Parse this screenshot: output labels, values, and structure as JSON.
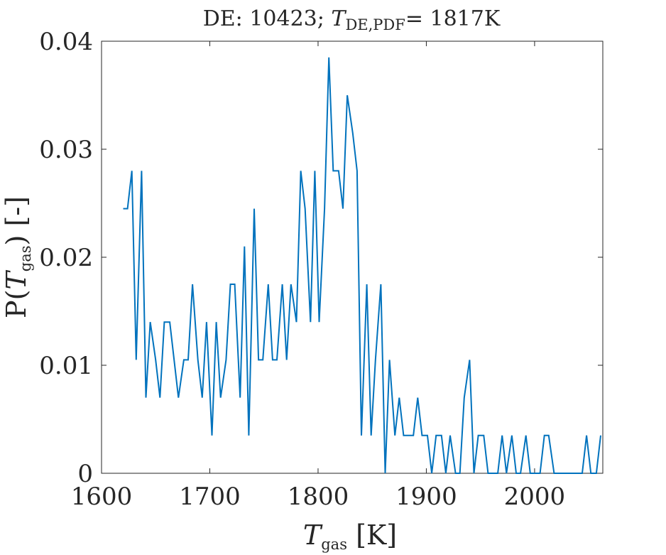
{
  "chart_data": {
    "type": "line",
    "title": {
      "prefix": "DE: 10423; ",
      "var": "T",
      "sub": "DE,PDF",
      "suffix": "= 1817K"
    },
    "xlabel": {
      "var": "T",
      "sub": "gas",
      "unit": " [K]"
    },
    "ylabel": {
      "prefix": "P(",
      "var": "T",
      "sub": "gas",
      "suffix": ") [-]"
    },
    "xlim": [
      1600,
      2063
    ],
    "ylim": [
      0,
      0.04
    ],
    "xticks": [
      1600,
      1700,
      1800,
      1900,
      2000
    ],
    "xtick_labels": [
      "1600",
      "1700",
      "1800",
      "1900",
      "2000"
    ],
    "yticks": [
      0,
      0.01,
      0.02,
      0.03,
      0.04
    ],
    "ytick_labels": [
      "0",
      "0.01",
      "0.02",
      "0.03",
      "0.04"
    ],
    "grid": false,
    "line_color": "#0072BD",
    "series": [
      {
        "x": [
          1620,
          1624,
          1628,
          1632,
          1637,
          1641,
          1645,
          1650,
          1654,
          1658,
          1663,
          1667,
          1671,
          1676,
          1680,
          1684,
          1689,
          1693,
          1697,
          1702,
          1706,
          1710,
          1715,
          1719,
          1723,
          1728,
          1732,
          1736,
          1741,
          1745,
          1749,
          1754,
          1758,
          1762,
          1767,
          1771,
          1775,
          1780,
          1784,
          1788,
          1793,
          1797,
          1801,
          1806,
          1810,
          1814,
          1819,
          1823,
          1827,
          1832,
          1836,
          1840,
          1845,
          1849,
          1853,
          1858,
          1862,
          1866,
          1871,
          1875,
          1879,
          1884,
          1888,
          1892,
          1896,
          1901,
          1905,
          1909,
          1914,
          1918,
          1922,
          1927,
          1931,
          1935,
          1940,
          1944,
          1948,
          1953,
          1957,
          1961,
          1966,
          1970,
          1974,
          1979,
          1983,
          1987,
          1992,
          1996,
          2000,
          2005,
          2009,
          2013,
          2018,
          2022,
          2026,
          2031,
          2035,
          2039,
          2044,
          2048,
          2052,
          2057,
          2061
        ],
        "values": [
          0.0245,
          0.0245,
          0.028,
          0.0105,
          0.028,
          0.007,
          0.014,
          0.0105,
          0.007,
          0.014,
          0.014,
          0.0105,
          0.007,
          0.0105,
          0.0105,
          0.0175,
          0.0105,
          0.007,
          0.014,
          0.0035,
          0.014,
          0.007,
          0.0105,
          0.0175,
          0.0175,
          0.007,
          0.021,
          0.0035,
          0.0245,
          0.0105,
          0.0105,
          0.0175,
          0.0105,
          0.0105,
          0.0175,
          0.0105,
          0.0175,
          0.014,
          0.028,
          0.0245,
          0.014,
          0.028,
          0.014,
          0.0245,
          0.0385,
          0.028,
          0.028,
          0.0245,
          0.035,
          0.0315,
          0.028,
          0.0035,
          0.0175,
          0.0035,
          0.0105,
          0.0175,
          0.0,
          0.0105,
          0.0035,
          0.007,
          0.0035,
          0.0035,
          0.0035,
          0.007,
          0.0035,
          0.0035,
          0.0,
          0.0035,
          0.0035,
          0.0,
          0.0035,
          0.0,
          0.0,
          0.007,
          0.0105,
          0.0,
          0.0035,
          0.0035,
          0.0,
          0.0,
          0.0,
          0.0035,
          0.0,
          0.0035,
          0.0,
          0.0,
          0.0035,
          0.0,
          0.0,
          0.0,
          0.0035,
          0.0035,
          0.0,
          0.0,
          0.0,
          0.0,
          0.0,
          0.0,
          0.0,
          0.0035,
          0.0,
          0.0,
          0.0035
        ]
      }
    ]
  }
}
